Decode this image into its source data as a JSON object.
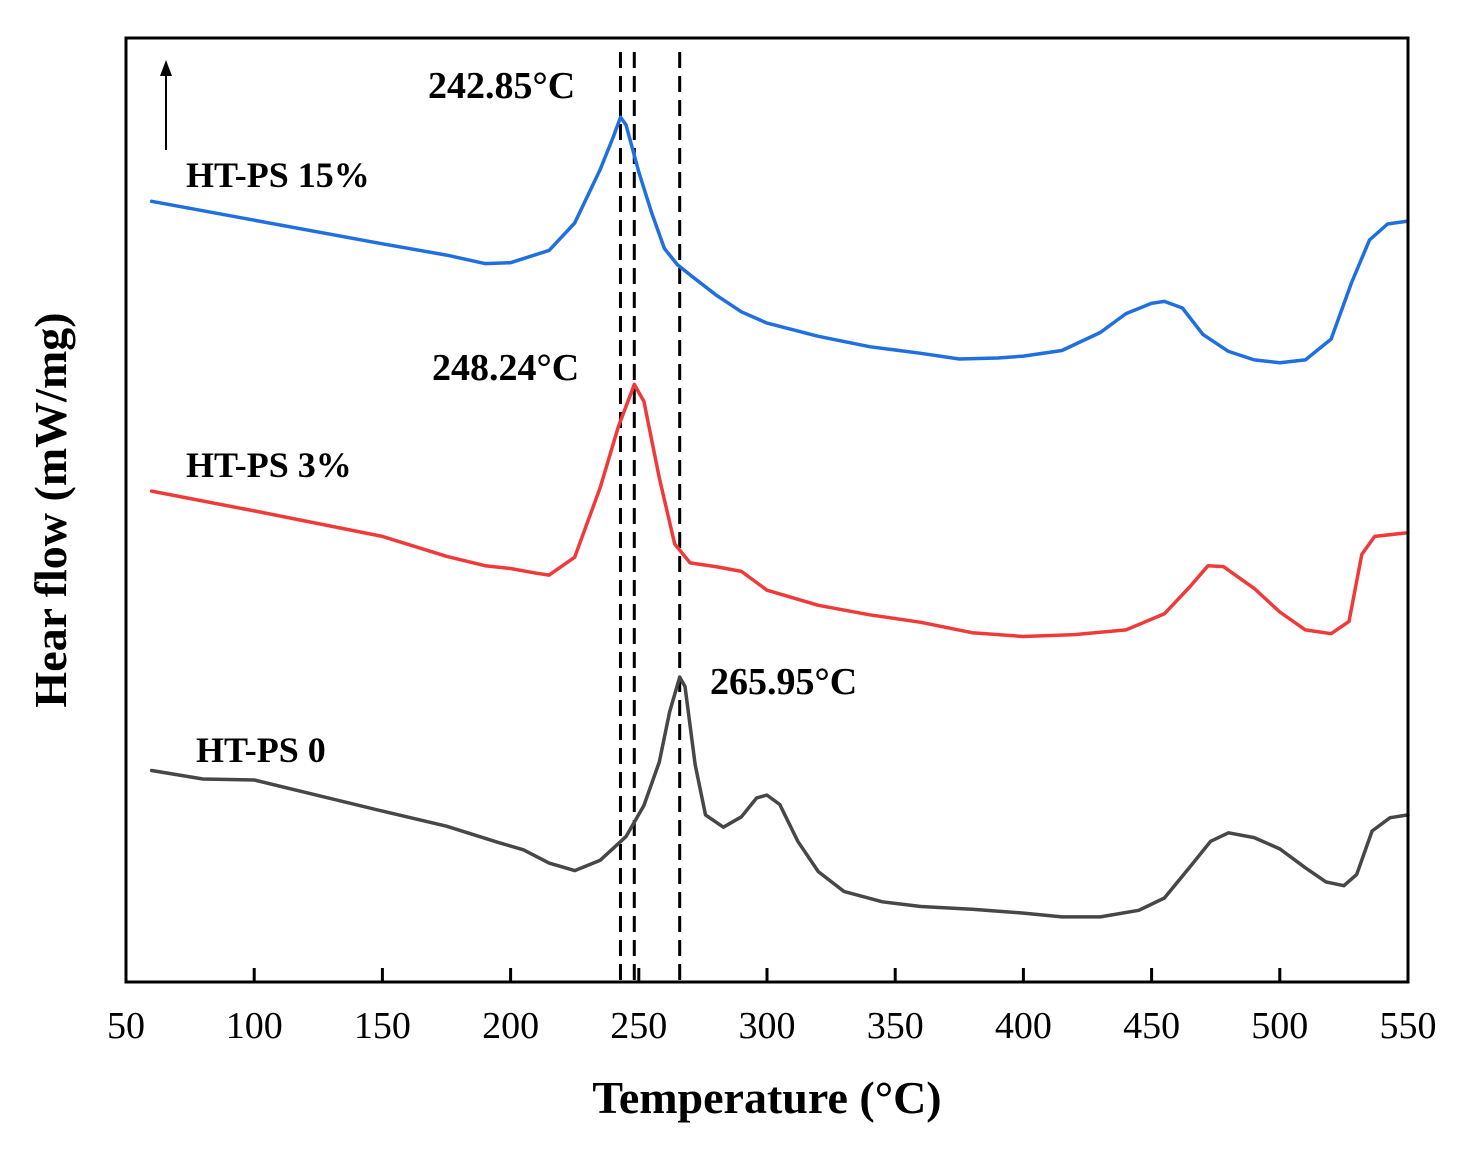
{
  "chart_data": {
    "type": "line",
    "title": "",
    "xlabel": "Temperature (°C)",
    "ylabel": "Hear flow (mW/mg)",
    "xlim": [
      50,
      550
    ],
    "ylim": [
      0,
      100
    ],
    "x_ticks": [
      50,
      100,
      150,
      200,
      250,
      300,
      350,
      400,
      450,
      500,
      550
    ],
    "y_ticks_shown": false,
    "grid": false,
    "legend": "inline labels next to curves",
    "series": [
      {
        "name": "HT-PS 15%",
        "color": "#1f6fe0",
        "points": [
          [
            60,
            82.7
          ],
          [
            100,
            80.7
          ],
          [
            150,
            78.2
          ],
          [
            175,
            77.0
          ],
          [
            190,
            76.1
          ],
          [
            200,
            76.2
          ],
          [
            215,
            77.5
          ],
          [
            225,
            80.4
          ],
          [
            235,
            86.1
          ],
          [
            240,
            89.5
          ],
          [
            242.85,
            91.6
          ],
          [
            245,
            90.8
          ],
          [
            250,
            85.8
          ],
          [
            255,
            81.5
          ],
          [
            260,
            77.7
          ],
          [
            265,
            76.0
          ],
          [
            270,
            74.9
          ],
          [
            280,
            72.8
          ],
          [
            290,
            71.0
          ],
          [
            300,
            69.8
          ],
          [
            320,
            68.4
          ],
          [
            340,
            67.3
          ],
          [
            360,
            66.6
          ],
          [
            375,
            66.0
          ],
          [
            390,
            66.1
          ],
          [
            400,
            66.3
          ],
          [
            415,
            66.9
          ],
          [
            430,
            68.8
          ],
          [
            440,
            70.8
          ],
          [
            450,
            71.9
          ],
          [
            455,
            72.1
          ],
          [
            462,
            71.4
          ],
          [
            470,
            68.6
          ],
          [
            480,
            66.8
          ],
          [
            490,
            65.9
          ],
          [
            500,
            65.6
          ],
          [
            510,
            65.9
          ],
          [
            520,
            68.1
          ],
          [
            528,
            74.1
          ],
          [
            535,
            78.6
          ],
          [
            542,
            80.3
          ],
          [
            550,
            80.6
          ]
        ]
      },
      {
        "name": "HT-PS 3%",
        "color": "#f03a3a",
        "points": [
          [
            60,
            52.0
          ],
          [
            100,
            49.9
          ],
          [
            150,
            47.2
          ],
          [
            175,
            45.1
          ],
          [
            190,
            44.1
          ],
          [
            200,
            43.8
          ],
          [
            210,
            43.3
          ],
          [
            215,
            43.1
          ],
          [
            225,
            45.0
          ],
          [
            235,
            52.4
          ],
          [
            242,
            58.8
          ],
          [
            248.24,
            63.3
          ],
          [
            252,
            61.5
          ],
          [
            258,
            53.4
          ],
          [
            264,
            46.4
          ],
          [
            270,
            44.4
          ],
          [
            280,
            44.0
          ],
          [
            290,
            43.5
          ],
          [
            300,
            41.5
          ],
          [
            320,
            39.9
          ],
          [
            340,
            38.9
          ],
          [
            360,
            38.1
          ],
          [
            380,
            37.0
          ],
          [
            400,
            36.6
          ],
          [
            420,
            36.8
          ],
          [
            440,
            37.3
          ],
          [
            455,
            39.0
          ],
          [
            465,
            41.9
          ],
          [
            472,
            44.1
          ],
          [
            478,
            44.0
          ],
          [
            490,
            41.7
          ],
          [
            500,
            39.2
          ],
          [
            510,
            37.3
          ],
          [
            520,
            36.9
          ],
          [
            527,
            38.2
          ],
          [
            532,
            45.3
          ],
          [
            537,
            47.2
          ],
          [
            550,
            47.6
          ]
        ]
      },
      {
        "name": "HT-PS 0",
        "color": "#474747",
        "points": [
          [
            60,
            22.4
          ],
          [
            80,
            21.5
          ],
          [
            100,
            21.4
          ],
          [
            150,
            18.1
          ],
          [
            175,
            16.5
          ],
          [
            195,
            14.8
          ],
          [
            205,
            14.0
          ],
          [
            215,
            12.6
          ],
          [
            225,
            11.8
          ],
          [
            235,
            12.9
          ],
          [
            245,
            15.4
          ],
          [
            252,
            18.7
          ],
          [
            258,
            23.3
          ],
          [
            262,
            28.6
          ],
          [
            265.95,
            32.3
          ],
          [
            268,
            31.3
          ],
          [
            272,
            23.0
          ],
          [
            276,
            17.7
          ],
          [
            283,
            16.4
          ],
          [
            290,
            17.5
          ],
          [
            296,
            19.5
          ],
          [
            300,
            19.8
          ],
          [
            305,
            18.8
          ],
          [
            312,
            14.9
          ],
          [
            320,
            11.7
          ],
          [
            330,
            9.6
          ],
          [
            345,
            8.5
          ],
          [
            360,
            8.0
          ],
          [
            380,
            7.7
          ],
          [
            400,
            7.3
          ],
          [
            415,
            6.9
          ],
          [
            430,
            6.9
          ],
          [
            445,
            7.6
          ],
          [
            455,
            8.9
          ],
          [
            465,
            12.2
          ],
          [
            473,
            14.9
          ],
          [
            480,
            15.8
          ],
          [
            490,
            15.3
          ],
          [
            500,
            14.1
          ],
          [
            510,
            12.1
          ],
          [
            518,
            10.6
          ],
          [
            525,
            10.2
          ],
          [
            530,
            11.4
          ],
          [
            536,
            16.0
          ],
          [
            543,
            17.4
          ],
          [
            550,
            17.7
          ]
        ]
      }
    ],
    "reference_lines": [
      242.85,
      248.24,
      265.95
    ],
    "annotations": [
      {
        "text": "242.85°C",
        "series": "HT-PS 15%",
        "x": 242.85
      },
      {
        "text": "248.24°C",
        "series": "HT-PS 3%",
        "x": 248.24
      },
      {
        "text": "265.95°C",
        "series": "HT-PS 0",
        "x": 265.95
      }
    ],
    "series_labels": {
      "s15": "HT-PS 15%",
      "s3": "HT-PS 3%",
      "s0": "HT-PS 0"
    },
    "indicator": "up-arrow (direction of heat flow)"
  }
}
